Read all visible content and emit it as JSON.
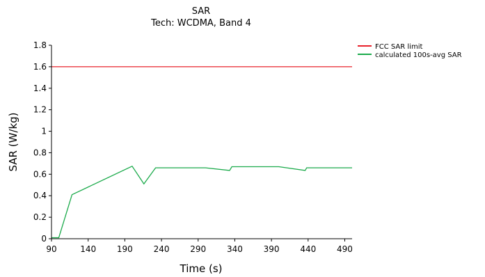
{
  "chart_data": {
    "type": "line",
    "title": "SAR",
    "subtitle": "Tech: WCDMA, Band 4",
    "xlabel": "Time (s)",
    "ylabel": "SAR (W/kg)",
    "xlim": [
      90,
      500
    ],
    "ylim": [
      0,
      1.8
    ],
    "xticks": [
      90,
      140,
      190,
      240,
      290,
      340,
      390,
      440,
      490
    ],
    "yticks": [
      0,
      0.2,
      0.4,
      0.6,
      0.8,
      1,
      1.2,
      1.4,
      1.6,
      1.8
    ],
    "grid": false,
    "legend_position": "top-right, outside plot",
    "series": [
      {
        "name": "FCC SAR limit",
        "color": "#e8202a",
        "x": [
          90,
          500
        ],
        "y": [
          1.6,
          1.6
        ]
      },
      {
        "name": "calculated 100s-avg SAR",
        "color": "#1aaa4a",
        "x": [
          90,
          100,
          118,
          200,
          216,
          232,
          300,
          333,
          336,
          400,
          436,
          438,
          500
        ],
        "y": [
          0.01,
          0.01,
          0.41,
          0.675,
          0.51,
          0.66,
          0.66,
          0.635,
          0.67,
          0.67,
          0.635,
          0.66,
          0.66
        ]
      }
    ]
  }
}
